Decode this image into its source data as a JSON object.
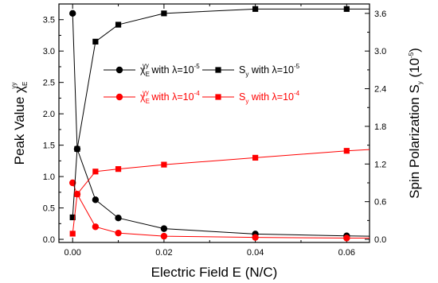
{
  "chart_data": {
    "type": "line",
    "xlabel": "Electric Field E (N/C)",
    "ylabel_left": {
      "main": "Peak Value ",
      "sym": "χ",
      "sub": "E",
      "sup": "yy"
    },
    "ylabel_right": {
      "main": "Spin Polarization S",
      "sub": "y",
      "unit": " (10",
      "unit_sup": "-5",
      "unit_close": ")"
    },
    "xlim": [
      -0.003,
      0.065
    ],
    "ylim_left": [
      -0.05,
      3.75
    ],
    "ylim_right": [
      -0.05,
      3.75
    ],
    "x_ticks": [
      "0.00",
      "0.02",
      "0.04",
      "0.06"
    ],
    "x_tick_values": [
      0,
      0.02,
      0.04,
      0.06
    ],
    "y_left_ticks": [
      "0.0",
      "0.5",
      "1.0",
      "1.5",
      "2.0",
      "2.5",
      "3.0",
      "3.5"
    ],
    "y_left_tick_values": [
      0,
      0.5,
      1.0,
      1.5,
      2.0,
      2.5,
      3.0,
      3.5
    ],
    "y_right_ticks": [
      "0.0",
      "0.6",
      "1.2",
      "1.8",
      "2.4",
      "3.0",
      "3.6"
    ],
    "y_right_tick_values": [
      0,
      0.6,
      1.2,
      1.8,
      2.4,
      3.0,
      3.6
    ],
    "legend_position": "middle",
    "series": [
      {
        "name": "χ_E^yy with λ=10^-5",
        "legend": {
          "sym": "χ",
          "sub": "E",
          "sup": "yy",
          "mid": " with λ=10",
          "pow": "-5"
        },
        "color": "#000000",
        "marker": "circle",
        "axis": "left",
        "x": [
          0.0,
          0.001,
          0.005,
          0.01,
          0.02,
          0.04,
          0.06
        ],
        "y": [
          3.6,
          1.44,
          0.63,
          0.34,
          0.17,
          0.085,
          0.055
        ],
        "extend_to": 0.065,
        "extend_y": 0.05
      },
      {
        "name": "χ_E^yy with λ=10^-4",
        "legend": {
          "sym": "χ",
          "sub": "E",
          "sup": "yy",
          "mid": " with λ=10",
          "pow": "-4"
        },
        "color": "#ff0000",
        "marker": "circle",
        "axis": "left",
        "x": [
          0.0,
          0.001,
          0.005,
          0.01,
          0.02,
          0.04,
          0.06
        ],
        "y": [
          0.9,
          0.72,
          0.2,
          0.1,
          0.05,
          0.03,
          0.02
        ],
        "extend_to": 0.065,
        "extend_y": 0.02
      },
      {
        "name": "S_y with λ=10^-5",
        "legend": {
          "sym": "S",
          "sub": "y",
          "sup": "",
          "mid": " with λ=10",
          "pow": "-5"
        },
        "color": "#000000",
        "marker": "square",
        "axis": "right",
        "x": [
          0.0,
          0.001,
          0.005,
          0.01,
          0.02,
          0.04,
          0.06
        ],
        "y": [
          0.35,
          1.44,
          3.15,
          3.42,
          3.6,
          3.67,
          3.67
        ],
        "extend_to": 0.065,
        "extend_y": 3.67
      },
      {
        "name": "S_y with λ=10^-4",
        "legend": {
          "sym": "S",
          "sub": "y",
          "sup": "",
          "mid": " with λ=10",
          "pow": "-4"
        },
        "color": "#ff0000",
        "marker": "square",
        "axis": "right",
        "x": [
          0.0,
          0.001,
          0.005,
          0.01,
          0.02,
          0.04,
          0.06
        ],
        "y": [
          0.09,
          0.72,
          1.08,
          1.12,
          1.19,
          1.3,
          1.41
        ],
        "extend_to": 0.065,
        "extend_y": 1.43
      }
    ]
  }
}
